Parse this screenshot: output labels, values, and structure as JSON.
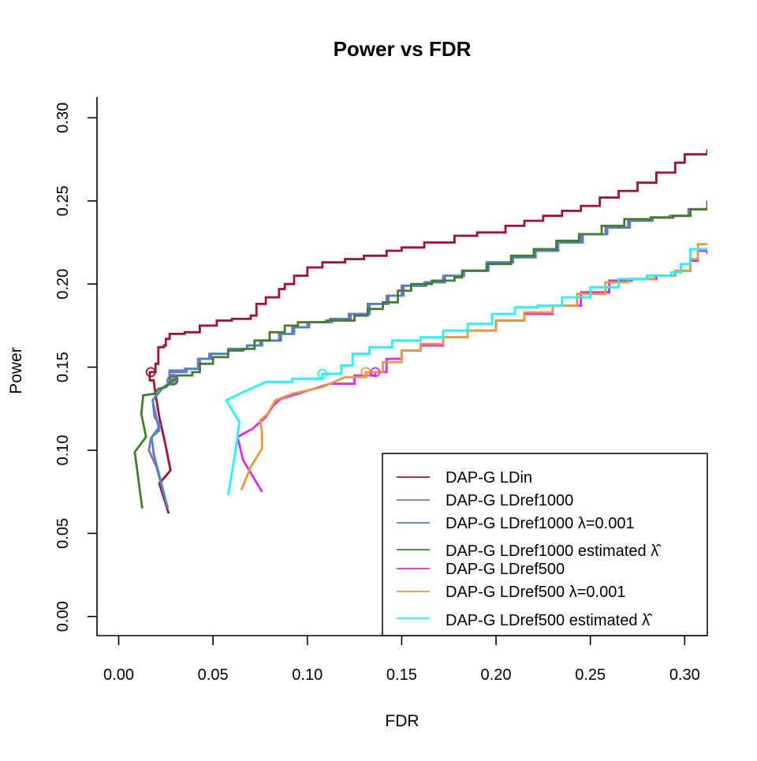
{
  "chart_data": {
    "type": "line",
    "title": "Power vs FDR",
    "xlabel": "FDR",
    "ylabel": "Power",
    "xlim": [
      -0.0115,
      0.312
    ],
    "ylim": [
      -0.0115,
      0.3125
    ],
    "x_ticks": [
      "0.00",
      "0.05",
      "0.10",
      "0.15",
      "0.20",
      "0.25",
      "0.30"
    ],
    "x_tick_values": [
      0,
      0.05,
      0.1,
      0.15,
      0.2,
      0.25,
      0.3
    ],
    "y_ticks": [
      "0.00",
      "0.05",
      "0.10",
      "0.15",
      "0.20",
      "0.25",
      "0.30"
    ],
    "y_tick_values": [
      0,
      0.05,
      0.1,
      0.15,
      0.2,
      0.25,
      0.3
    ],
    "grid": false,
    "legend_position": "bottom-right",
    "series": [
      {
        "name": "DAP-G LDin",
        "color": "#a50f2d",
        "marker": [
          0.017,
          0.147
        ],
        "points": [
          [
            0.0265,
            0.062
          ],
          [
            0.0215,
            0.08
          ],
          [
            0.0275,
            0.088
          ],
          [
            0.0245,
            0.105
          ],
          [
            0.0215,
            0.12
          ],
          [
            0.0195,
            0.134
          ],
          [
            0.0185,
            0.142
          ],
          [
            0.0165,
            0.147
          ],
          [
            0.0195,
            0.152
          ],
          [
            0.021,
            0.162
          ],
          [
            0.024,
            0.163
          ],
          [
            0.025,
            0.167
          ],
          [
            0.027,
            0.17
          ],
          [
            0.035,
            0.171
          ],
          [
            0.043,
            0.175
          ],
          [
            0.052,
            0.178
          ],
          [
            0.06,
            0.179
          ],
          [
            0.07,
            0.181
          ],
          [
            0.073,
            0.188
          ],
          [
            0.078,
            0.192
          ],
          [
            0.085,
            0.197
          ],
          [
            0.088,
            0.2
          ],
          [
            0.093,
            0.205
          ],
          [
            0.1,
            0.21
          ],
          [
            0.108,
            0.213
          ],
          [
            0.12,
            0.215
          ],
          [
            0.13,
            0.217
          ],
          [
            0.142,
            0.22
          ],
          [
            0.15,
            0.222
          ],
          [
            0.162,
            0.225
          ],
          [
            0.178,
            0.229
          ],
          [
            0.19,
            0.231
          ],
          [
            0.205,
            0.235
          ],
          [
            0.215,
            0.238
          ],
          [
            0.225,
            0.241
          ],
          [
            0.235,
            0.244
          ],
          [
            0.245,
            0.247
          ],
          [
            0.255,
            0.252
          ],
          [
            0.265,
            0.256
          ],
          [
            0.275,
            0.261
          ],
          [
            0.285,
            0.267
          ],
          [
            0.295,
            0.273
          ],
          [
            0.3,
            0.278
          ],
          [
            0.312,
            0.281
          ]
        ]
      },
      {
        "name": "DAP-G LDref1000",
        "color": "#8b6fb6",
        "marker": [
          0.029,
          0.143
        ],
        "points": [
          [
            0.026,
            0.065
          ],
          [
            0.02,
            0.09
          ],
          [
            0.016,
            0.1
          ],
          [
            0.017,
            0.107
          ],
          [
            0.022,
            0.115
          ],
          [
            0.019,
            0.12
          ],
          [
            0.018,
            0.13
          ],
          [
            0.023,
            0.137
          ],
          [
            0.029,
            0.143
          ],
          [
            0.027,
            0.148
          ],
          [
            0.035,
            0.149
          ],
          [
            0.042,
            0.155
          ],
          [
            0.048,
            0.158
          ],
          [
            0.058,
            0.161
          ],
          [
            0.068,
            0.163
          ],
          [
            0.075,
            0.166
          ],
          [
            0.085,
            0.17
          ],
          [
            0.092,
            0.174
          ],
          [
            0.1,
            0.177
          ],
          [
            0.112,
            0.179
          ],
          [
            0.122,
            0.182
          ],
          [
            0.132,
            0.188
          ],
          [
            0.142,
            0.193
          ],
          [
            0.15,
            0.199
          ],
          [
            0.162,
            0.201
          ],
          [
            0.172,
            0.205
          ],
          [
            0.182,
            0.208
          ],
          [
            0.195,
            0.213
          ],
          [
            0.208,
            0.216
          ],
          [
            0.22,
            0.22
          ],
          [
            0.232,
            0.225
          ],
          [
            0.245,
            0.23
          ],
          [
            0.258,
            0.234
          ],
          [
            0.27,
            0.238
          ],
          [
            0.282,
            0.24
          ],
          [
            0.292,
            0.241
          ],
          [
            0.302,
            0.245
          ],
          [
            0.312,
            0.25
          ]
        ]
      },
      {
        "name": "DAP-G LDref1000 λ=0.001",
        "color": "#4a86c5",
        "marker": [
          0.028,
          0.142
        ],
        "points": [
          [
            0.026,
            0.065
          ],
          [
            0.0215,
            0.085
          ],
          [
            0.0185,
            0.098
          ],
          [
            0.0175,
            0.108
          ],
          [
            0.0215,
            0.112
          ],
          [
            0.0195,
            0.122
          ],
          [
            0.018,
            0.13
          ],
          [
            0.022,
            0.136
          ],
          [
            0.028,
            0.142
          ],
          [
            0.027,
            0.147
          ],
          [
            0.036,
            0.149
          ],
          [
            0.043,
            0.155
          ],
          [
            0.049,
            0.158
          ],
          [
            0.058,
            0.161
          ],
          [
            0.068,
            0.163
          ],
          [
            0.076,
            0.166
          ],
          [
            0.086,
            0.17
          ],
          [
            0.093,
            0.174
          ],
          [
            0.101,
            0.177
          ],
          [
            0.113,
            0.179
          ],
          [
            0.123,
            0.182
          ],
          [
            0.133,
            0.188
          ],
          [
            0.143,
            0.193
          ],
          [
            0.151,
            0.199
          ],
          [
            0.163,
            0.201
          ],
          [
            0.173,
            0.205
          ],
          [
            0.183,
            0.208
          ],
          [
            0.196,
            0.213
          ],
          [
            0.209,
            0.216
          ],
          [
            0.221,
            0.22
          ],
          [
            0.233,
            0.225
          ],
          [
            0.246,
            0.23
          ],
          [
            0.259,
            0.234
          ],
          [
            0.271,
            0.238
          ],
          [
            0.283,
            0.24
          ],
          [
            0.293,
            0.241
          ],
          [
            0.303,
            0.245
          ],
          [
            0.312,
            0.249
          ]
        ]
      },
      {
        "name": "DAP-G LDref1000 estimated λ̂",
        "color": "#457b2b",
        "marker": [
          0.029,
          0.142
        ],
        "points": [
          [
            0.0125,
            0.065
          ],
          [
            0.0085,
            0.099
          ],
          [
            0.0145,
            0.108
          ],
          [
            0.012,
            0.122
          ],
          [
            0.013,
            0.133
          ],
          [
            0.019,
            0.134
          ],
          [
            0.021,
            0.137
          ],
          [
            0.025,
            0.138
          ],
          [
            0.029,
            0.142
          ],
          [
            0.031,
            0.145
          ],
          [
            0.039,
            0.147
          ],
          [
            0.043,
            0.152
          ],
          [
            0.05,
            0.156
          ],
          [
            0.058,
            0.16
          ],
          [
            0.066,
            0.161
          ],
          [
            0.072,
            0.166
          ],
          [
            0.08,
            0.171
          ],
          [
            0.088,
            0.175
          ],
          [
            0.095,
            0.177
          ],
          [
            0.11,
            0.178
          ],
          [
            0.125,
            0.181
          ],
          [
            0.132,
            0.185
          ],
          [
            0.14,
            0.189
          ],
          [
            0.148,
            0.196
          ],
          [
            0.155,
            0.2
          ],
          [
            0.166,
            0.202
          ],
          [
            0.178,
            0.204
          ],
          [
            0.182,
            0.208
          ],
          [
            0.195,
            0.212
          ],
          [
            0.208,
            0.217
          ],
          [
            0.22,
            0.221
          ],
          [
            0.232,
            0.226
          ],
          [
            0.244,
            0.23
          ],
          [
            0.256,
            0.235
          ],
          [
            0.268,
            0.239
          ],
          [
            0.282,
            0.24
          ],
          [
            0.294,
            0.241
          ],
          [
            0.303,
            0.245
          ],
          [
            0.312,
            0.25
          ]
        ]
      },
      {
        "name": "DAP-G LDref500",
        "color": "#f01ff1",
        "marker": [
          0.136,
          0.147
        ],
        "points": [
          [
            0.076,
            0.075
          ],
          [
            0.066,
            0.094
          ],
          [
            0.063,
            0.108
          ],
          [
            0.071,
            0.113
          ],
          [
            0.078,
            0.12
          ],
          [
            0.082,
            0.127
          ],
          [
            0.086,
            0.131
          ],
          [
            0.095,
            0.134
          ],
          [
            0.112,
            0.14
          ],
          [
            0.125,
            0.145
          ],
          [
            0.136,
            0.147
          ],
          [
            0.142,
            0.155
          ],
          [
            0.15,
            0.16
          ],
          [
            0.16,
            0.163
          ],
          [
            0.172,
            0.168
          ],
          [
            0.185,
            0.172
          ],
          [
            0.2,
            0.178
          ],
          [
            0.215,
            0.182
          ],
          [
            0.23,
            0.187
          ],
          [
            0.245,
            0.195
          ],
          [
            0.26,
            0.202
          ],
          [
            0.272,
            0.203
          ],
          [
            0.285,
            0.205
          ],
          [
            0.295,
            0.208
          ],
          [
            0.303,
            0.214
          ],
          [
            0.307,
            0.22
          ],
          [
            0.312,
            0.218
          ]
        ]
      },
      {
        "name": "DAP-G LDref500 λ=0.001",
        "color": "#e49b3b",
        "marker": [
          0.131,
          0.147
        ],
        "points": [
          [
            0.065,
            0.076
          ],
          [
            0.07,
            0.09
          ],
          [
            0.076,
            0.101
          ],
          [
            0.076,
            0.11
          ],
          [
            0.075,
            0.118
          ],
          [
            0.079,
            0.122
          ],
          [
            0.083,
            0.13
          ],
          [
            0.092,
            0.134
          ],
          [
            0.108,
            0.138
          ],
          [
            0.12,
            0.144
          ],
          [
            0.131,
            0.147
          ],
          [
            0.14,
            0.153
          ],
          [
            0.15,
            0.16
          ],
          [
            0.16,
            0.164
          ],
          [
            0.172,
            0.168
          ],
          [
            0.185,
            0.172
          ],
          [
            0.2,
            0.178
          ],
          [
            0.215,
            0.183
          ],
          [
            0.23,
            0.187
          ],
          [
            0.243,
            0.194
          ],
          [
            0.258,
            0.201
          ],
          [
            0.27,
            0.203
          ],
          [
            0.284,
            0.205
          ],
          [
            0.295,
            0.208
          ],
          [
            0.303,
            0.215
          ],
          [
            0.307,
            0.224
          ],
          [
            0.312,
            0.224
          ]
        ]
      },
      {
        "name": "DAP-G LDref500 estimated λ̂",
        "color": "#1ff4f6",
        "marker": [
          0.108,
          0.146
        ],
        "points": [
          [
            0.058,
            0.073
          ],
          [
            0.062,
            0.1
          ],
          [
            0.064,
            0.117
          ],
          [
            0.057,
            0.13
          ],
          [
            0.066,
            0.135
          ],
          [
            0.078,
            0.141
          ],
          [
            0.092,
            0.143
          ],
          [
            0.108,
            0.146
          ],
          [
            0.118,
            0.151
          ],
          [
            0.124,
            0.158
          ],
          [
            0.133,
            0.162
          ],
          [
            0.145,
            0.166
          ],
          [
            0.16,
            0.168
          ],
          [
            0.172,
            0.172
          ],
          [
            0.185,
            0.176
          ],
          [
            0.198,
            0.182
          ],
          [
            0.21,
            0.186
          ],
          [
            0.222,
            0.187
          ],
          [
            0.235,
            0.192
          ],
          [
            0.25,
            0.198
          ],
          [
            0.265,
            0.203
          ],
          [
            0.28,
            0.205
          ],
          [
            0.293,
            0.207
          ],
          [
            0.298,
            0.212
          ],
          [
            0.303,
            0.221
          ],
          [
            0.312,
            0.222
          ]
        ]
      }
    ]
  }
}
